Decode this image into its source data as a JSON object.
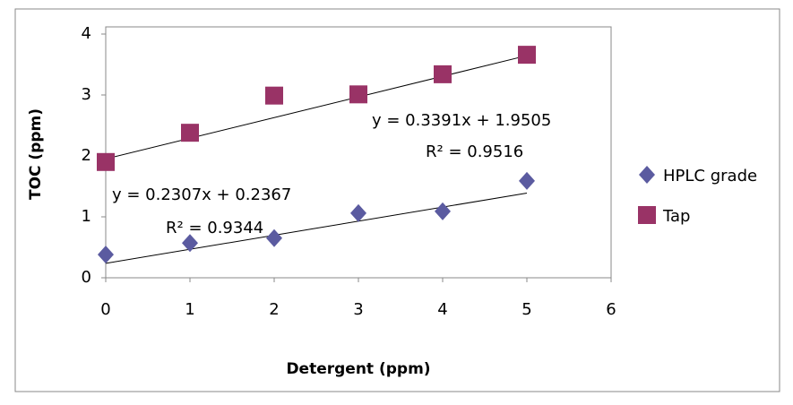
{
  "chart_data": {
    "type": "scatter",
    "x_label": "Detergent (ppm)",
    "y_label": "TOC (ppm)",
    "xlim": [
      0,
      6
    ],
    "xticks": [
      0,
      1,
      2,
      3,
      4,
      5,
      6
    ],
    "ylim": [
      0,
      4
    ],
    "yticks": [
      0,
      1,
      2,
      3,
      4
    ],
    "grid": false,
    "legend": "right",
    "series": [
      {
        "name": "HPLC grade",
        "color": "#5b5ba0",
        "marker": "diamond",
        "x": [
          0,
          1,
          2,
          3,
          4,
          5
        ],
        "values": [
          0.38,
          0.57,
          0.65,
          1.06,
          1.09,
          1.59
        ],
        "trendline": {
          "slope": 0.2307,
          "intercept": 0.2367
        },
        "equation": "y = 0.2307x + 0.2367",
        "r_squared": "R² = 0.9344"
      },
      {
        "name": "Tap",
        "color": "#993366",
        "marker": "square",
        "x": [
          0,
          1,
          2,
          3,
          4,
          5
        ],
        "values": [
          1.9,
          2.38,
          2.99,
          3.01,
          3.34,
          3.66
        ],
        "trendline": {
          "slope": 0.3391,
          "intercept": 1.9505
        },
        "equation": "y = 0.3391x + 1.9505",
        "r_squared": "R² = 0.9516"
      }
    ]
  }
}
